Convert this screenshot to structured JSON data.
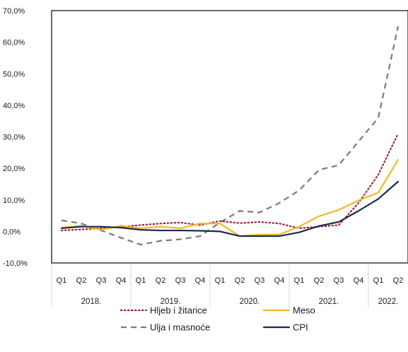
{
  "chart_data": {
    "type": "line",
    "title": "",
    "xlabel": "",
    "ylabel": "",
    "ylim": [
      -10,
      70
    ],
    "y_ticks": [
      -10,
      0,
      10,
      20,
      30,
      40,
      50,
      60,
      70
    ],
    "y_tick_labels": [
      "-10,0%",
      "0,0%",
      "10,0%",
      "20,0%",
      "30,0%",
      "40,0%",
      "50,0%",
      "60,0%",
      "70,0%"
    ],
    "categories": [
      "Q1",
      "Q2",
      "Q3",
      "Q4",
      "Q1",
      "Q2",
      "Q3",
      "Q4",
      "Q1",
      "Q2",
      "Q3",
      "Q4",
      "Q1",
      "Q2",
      "Q3",
      "Q4",
      "Q1",
      "Q2"
    ],
    "years": [
      {
        "label": "2018.",
        "quarters": 4
      },
      {
        "label": "2019.",
        "quarters": 4
      },
      {
        "label": "2020.",
        "quarters": 4
      },
      {
        "label": "2021.",
        "quarters": 4
      },
      {
        "label": "2022.",
        "quarters": 2
      }
    ],
    "grid": false,
    "legend_placement": "bottom",
    "series": [
      {
        "name": "Hljeb i žitarice",
        "color": "#a0232e",
        "style": "dotted",
        "values": [
          0.3,
          0.6,
          1.0,
          1.4,
          2.0,
          2.5,
          2.8,
          2.0,
          3.3,
          2.6,
          3.0,
          2.5,
          1.0,
          1.5,
          2.0,
          9.0,
          18.0,
          31.0
        ]
      },
      {
        "name": "Meso",
        "color": "#f5b821",
        "style": "solid",
        "values": [
          1.2,
          1.8,
          0.5,
          1.8,
          1.0,
          1.5,
          1.0,
          2.5,
          2.5,
          -1.5,
          -1.0,
          -1.0,
          1.5,
          4.8,
          6.8,
          9.8,
          12.3,
          22.7
        ]
      },
      {
        "name": "Ulja i masnoće",
        "color": "#7a7a7a",
        "style": "dashed",
        "values": [
          3.5,
          2.5,
          0.3,
          -2.0,
          -4.2,
          -3.0,
          -2.5,
          -1.5,
          2.8,
          6.5,
          6.0,
          9.0,
          13.0,
          19.5,
          21.0,
          28.5,
          36.0,
          65.0
        ]
      },
      {
        "name": "CPI",
        "color": "#1c2b51",
        "style": "solid",
        "values": [
          1.0,
          1.5,
          1.5,
          1.2,
          0.5,
          0.3,
          0.3,
          0.2,
          0.0,
          -1.5,
          -1.5,
          -1.5,
          -0.3,
          1.7,
          3.0,
          6.5,
          10.3,
          15.8
        ]
      }
    ]
  }
}
